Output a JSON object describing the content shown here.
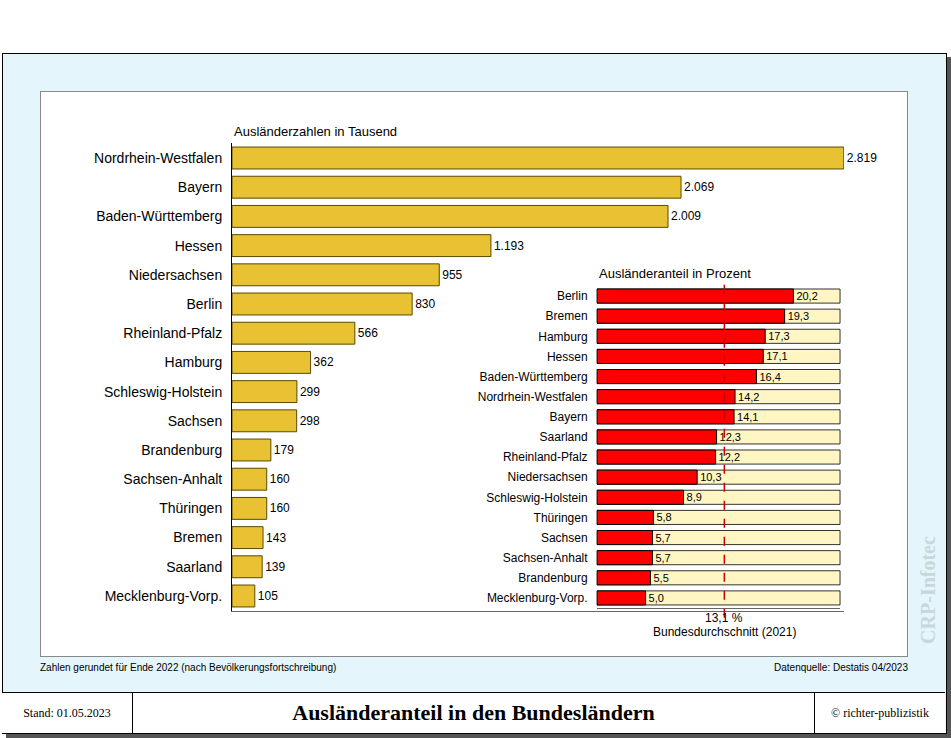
{
  "page": {
    "title": "Ausländeranteil in den Bundesländern",
    "date": "Stand: 01.05.2023",
    "copyright": "© richter-publizistik",
    "note": "Zahlen gerundet für Ende 2022 (nach Bevölkerungsfortschreibung)",
    "source": "Datenquelle: Destatis 04/2023",
    "watermark": "CRP-Infotec"
  },
  "chart_data": [
    {
      "type": "bar",
      "title": "Ausländerzahlen in Tausend",
      "orientation": "horizontal",
      "categories": [
        "Nordrhein-Westfalen",
        "Bayern",
        "Baden-Württemberg",
        "Hessen",
        "Niedersachsen",
        "Berlin",
        "Rheinland-Pfalz",
        "Hamburg",
        "Schleswig-Holstein",
        "Sachsen",
        "Brandenburg",
        "Sachsen-Anhalt",
        "Thüringen",
        "Bremen",
        "Saarland",
        "Mecklenburg-Vorp."
      ],
      "values": [
        2819,
        2069,
        2009,
        1193,
        955,
        830,
        566,
        362,
        299,
        298,
        179,
        160,
        160,
        143,
        139,
        105
      ],
      "value_labels": [
        "2.819",
        "2.069",
        "2.009",
        "1.193",
        "955",
        "830",
        "566",
        "362",
        "299",
        "298",
        "179",
        "160",
        "160",
        "143",
        "139",
        "105"
      ],
      "color": "#e8c232",
      "xlim": [
        0,
        2820
      ],
      "data_labels": true,
      "tick_labels": "y",
      "grid": false
    },
    {
      "type": "bar",
      "title": "Ausländeranteil in Prozent",
      "orientation": "horizontal",
      "categories": [
        "Berlin",
        "Bremen",
        "Hamburg",
        "Hessen",
        "Baden-Württemberg",
        "Nordrhein-Westfalen",
        "Bayern",
        "Saarland",
        "Rheinland-Pfalz",
        "Niedersachsen",
        "Schleswig-Holstein",
        "Thüringen",
        "Sachsen",
        "Sachsen-Anhalt",
        "Brandenburg",
        "Mecklenburg-Vorp."
      ],
      "values": [
        20.2,
        19.3,
        17.3,
        17.1,
        16.4,
        14.2,
        14.1,
        12.3,
        12.2,
        10.3,
        8.9,
        5.8,
        5.7,
        5.7,
        5.5,
        5.0
      ],
      "value_labels": [
        "20,2",
        "19,3",
        "17,3",
        "17,1",
        "16,4",
        "14,2",
        "14,1",
        "12,3",
        "12,2",
        "10,3",
        "8,9",
        "5,8",
        "5,7",
        "5,7",
        "5,5",
        "5,0"
      ],
      "color": "#ff0000",
      "xlim": [
        0,
        25
      ],
      "data_labels": true,
      "tick_labels": "y",
      "grid": false,
      "reference": {
        "value": 13.1,
        "label": "13,1 %",
        "note": "Bundesdurchschnitt (2021)"
      }
    }
  ]
}
